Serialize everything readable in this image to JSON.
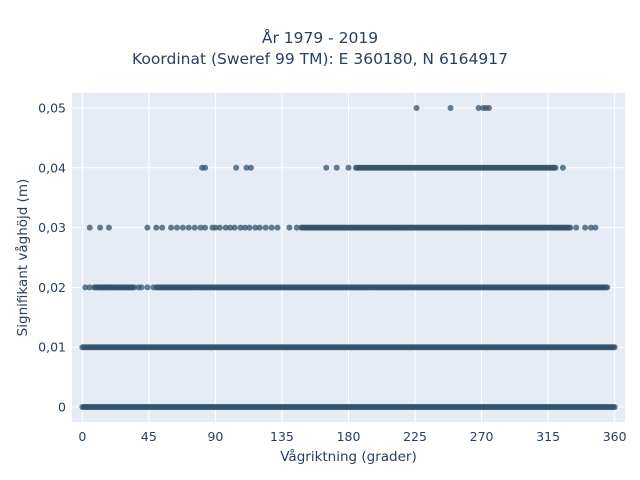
{
  "chart_data": {
    "type": "scatter",
    "title_lines": [
      "År 1979 - 2019",
      "Koordinat (Sweref 99 TM): E 360180, N 6164917"
    ],
    "xlabel": "Vågriktning (grader)",
    "ylabel": "Signifikant våghöjd (m)",
    "xlim": [
      -7,
      367
    ],
    "ylim": [
      -0.0025,
      0.0525
    ],
    "x_ticks": [
      0,
      45,
      90,
      135,
      180,
      225,
      270,
      315,
      360
    ],
    "x_tick_labels": [
      "0",
      "45",
      "90",
      "135",
      "180",
      "225",
      "270",
      "315",
      "360"
    ],
    "y_ticks": [
      0,
      0.01,
      0.02,
      0.03,
      0.04,
      0.05
    ],
    "y_tick_labels": [
      "0",
      "0,01",
      "0,02",
      "0,03",
      "0,04",
      "0,05"
    ],
    "grid": true,
    "legend": "none",
    "marker_color": "#34536b",
    "plot_bg": "#e5ecf6",
    "series": [
      {
        "bands": [
          {
            "y": 0,
            "x_ranges": [
              [
                0,
                360
              ]
            ],
            "x_points": []
          },
          {
            "y": 0.01,
            "x_ranges": [
              [
                0,
                360
              ]
            ],
            "x_points": []
          },
          {
            "y": 0.02,
            "x_ranges": [
              [
                8,
                35
              ],
              [
                50,
                355
              ]
            ],
            "x_points": [
              2,
              5,
              13,
              16,
              19,
              38,
              40,
              44,
              48
            ]
          },
          {
            "y": 0.03,
            "x_ranges": [
              [
                148,
                330
              ]
            ],
            "x_points": [
              5,
              12,
              18,
              44,
              50,
              54,
              60,
              64,
              68,
              72,
              76,
              80,
              83,
              88,
              90,
              93,
              97,
              100,
              103,
              107,
              110,
              113,
              117,
              120,
              124,
              128,
              132,
              140,
              145,
              334,
              340,
              344,
              347
            ]
          },
          {
            "y": 0.04,
            "x_ranges": [
              [
                185,
                320
              ]
            ],
            "x_points": [
              81,
              83,
              104,
              111,
              114,
              165,
              172,
              180,
              325
            ]
          },
          {
            "y": 0.05,
            "x_ranges": [],
            "x_points": [
              226,
              249,
              268,
              271,
              273,
              275
            ]
          }
        ]
      }
    ]
  }
}
